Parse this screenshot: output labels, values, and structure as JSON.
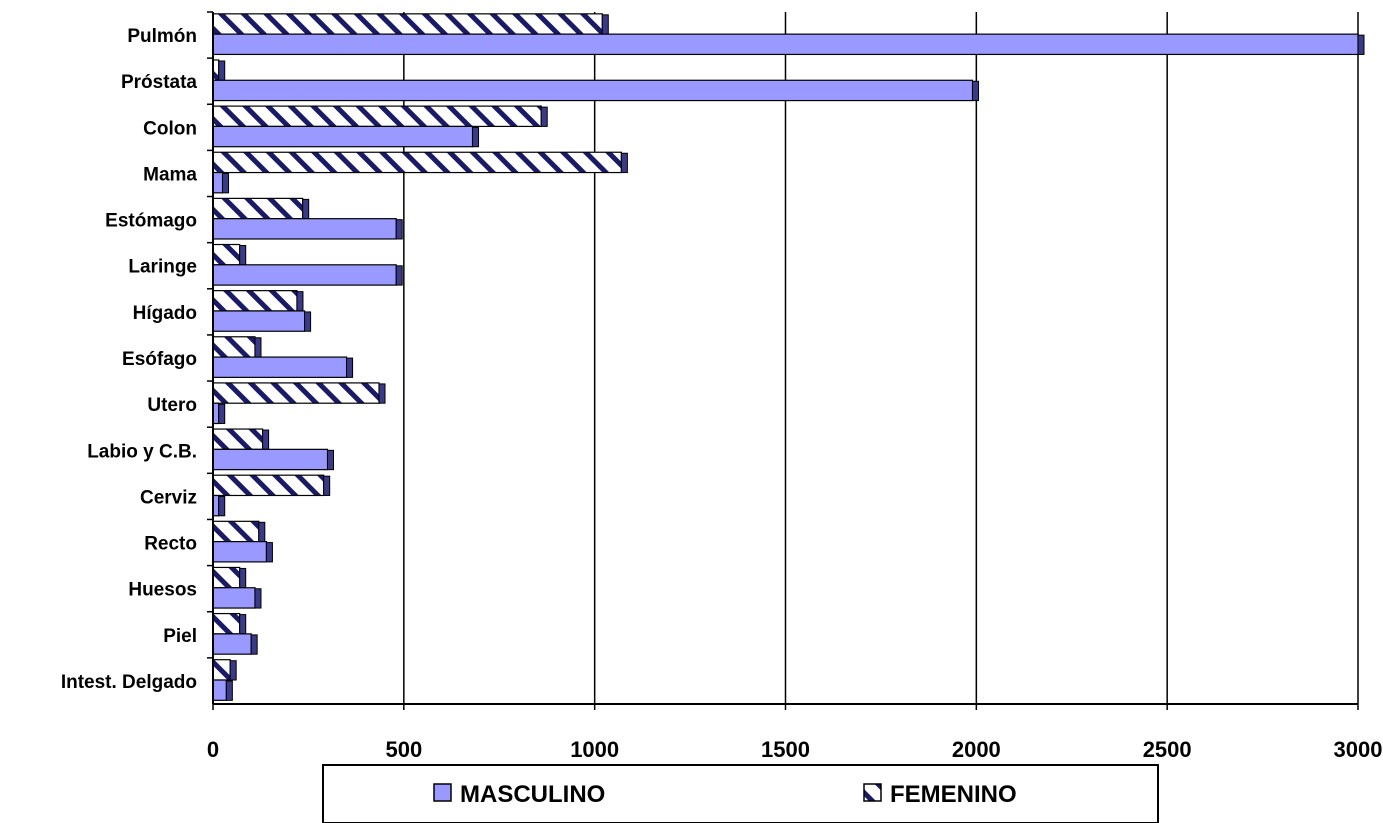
{
  "chart_data": {
    "type": "bar",
    "orientation": "horizontal",
    "categories": [
      "Pulmón",
      "Próstata",
      "Colon",
      "Mama",
      "Estómago",
      "Laringe",
      "Hígado",
      "Esófago",
      "Utero",
      "Labio y C.B.",
      "Cerviz",
      "Recto",
      "Huesos",
      "Piel",
      "Intest. Delgado"
    ],
    "series": [
      {
        "name": "MASCULINO",
        "values": [
          3000,
          1990,
          680,
          25,
          480,
          480,
          240,
          350,
          15,
          300,
          15,
          140,
          110,
          100,
          35
        ],
        "color": "#9999ff",
        "pattern": "solid"
      },
      {
        "name": "FEMENINO",
        "values": [
          1020,
          15,
          860,
          1070,
          235,
          70,
          220,
          110,
          435,
          130,
          290,
          120,
          70,
          70,
          45
        ],
        "color": "#ffffff",
        "pattern": "hatch"
      }
    ],
    "xlim": [
      0,
      3000
    ],
    "xticks": [
      "0",
      "500",
      "1000",
      "1500",
      "2000",
      "2500",
      "3000"
    ],
    "grid": "vertical",
    "legend_position": "bottom"
  }
}
